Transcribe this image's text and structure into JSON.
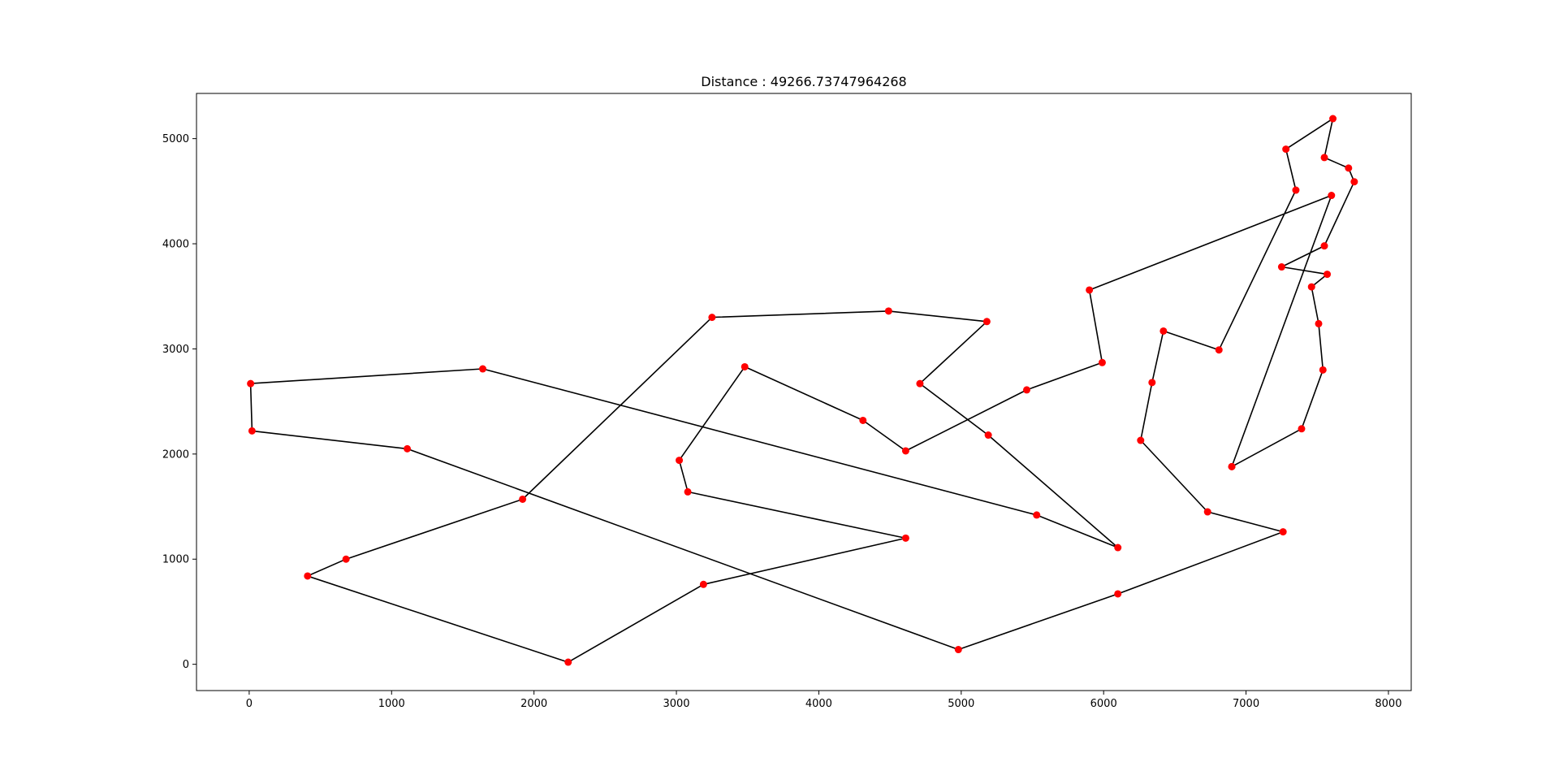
{
  "chart_data": {
    "type": "line",
    "title": "Distance : 49266.73747964268",
    "xlabel": "",
    "ylabel": "",
    "xlim": [
      -370,
      8160
    ],
    "ylim": [
      -250,
      5430
    ],
    "xticks": [
      0,
      1000,
      2000,
      3000,
      4000,
      5000,
      6000,
      7000,
      8000
    ],
    "yticks": [
      0,
      1000,
      2000,
      3000,
      4000,
      5000
    ],
    "grid": false,
    "line_color": "#000000",
    "marker_color": "#ff0000",
    "points": [
      {
        "x": 6900,
        "y": 1880
      },
      {
        "x": 7390,
        "y": 2240
      },
      {
        "x": 7540,
        "y": 2800
      },
      {
        "x": 7510,
        "y": 3240
      },
      {
        "x": 7460,
        "y": 3590
      },
      {
        "x": 7570,
        "y": 3710
      },
      {
        "x": 7250,
        "y": 3780
      },
      {
        "x": 7550,
        "y": 3980
      },
      {
        "x": 7760,
        "y": 4590
      },
      {
        "x": 7720,
        "y": 4720
      },
      {
        "x": 7550,
        "y": 4820
      },
      {
        "x": 7610,
        "y": 5190
      },
      {
        "x": 7280,
        "y": 4900
      },
      {
        "x": 7350,
        "y": 4510
      },
      {
        "x": 6810,
        "y": 2990
      },
      {
        "x": 6420,
        "y": 3170
      },
      {
        "x": 6340,
        "y": 2680
      },
      {
        "x": 6260,
        "y": 2130
      },
      {
        "x": 6730,
        "y": 1450
      },
      {
        "x": 7260,
        "y": 1260
      },
      {
        "x": 6100,
        "y": 670
      },
      {
        "x": 4980,
        "y": 140
      },
      {
        "x": 1110,
        "y": 2050
      },
      {
        "x": 20,
        "y": 2220
      },
      {
        "x": 10,
        "y": 2670
      },
      {
        "x": 1640,
        "y": 2810
      },
      {
        "x": 5530,
        "y": 1420
      },
      {
        "x": 6100,
        "y": 1110
      },
      {
        "x": 5190,
        "y": 2180
      },
      {
        "x": 4710,
        "y": 2670
      },
      {
        "x": 5180,
        "y": 3260
      },
      {
        "x": 4490,
        "y": 3360
      },
      {
        "x": 3250,
        "y": 3300
      },
      {
        "x": 1920,
        "y": 1570
      },
      {
        "x": 680,
        "y": 1000
      },
      {
        "x": 410,
        "y": 840
      },
      {
        "x": 2240,
        "y": 20
      },
      {
        "x": 3190,
        "y": 760
      },
      {
        "x": 4610,
        "y": 1200
      },
      {
        "x": 3080,
        "y": 1640
      },
      {
        "x": 3020,
        "y": 1940
      },
      {
        "x": 3480,
        "y": 2830
      },
      {
        "x": 4310,
        "y": 2320
      },
      {
        "x": 4610,
        "y": 2030
      },
      {
        "x": 5460,
        "y": 2610
      },
      {
        "x": 5990,
        "y": 2870
      },
      {
        "x": 5900,
        "y": 3560
      },
      {
        "x": 7600,
        "y": 4460
      },
      {
        "x": 6900,
        "y": 1880
      }
    ]
  }
}
